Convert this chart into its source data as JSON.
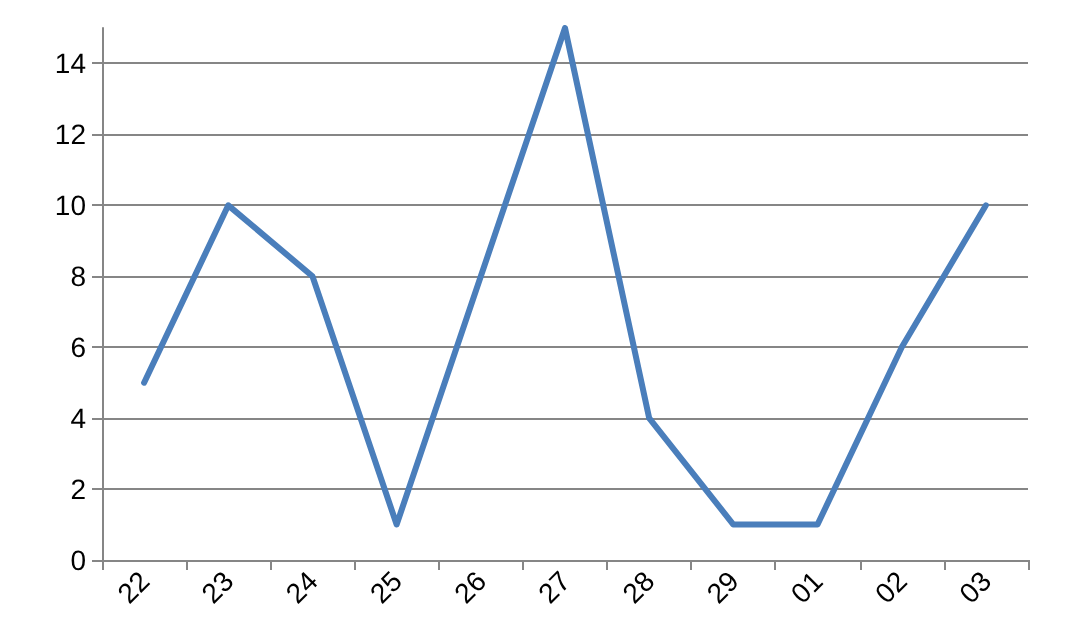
{
  "chart_data": {
    "type": "line",
    "categories": [
      "22",
      "23",
      "24",
      "25",
      "26",
      "27",
      "28",
      "29",
      "01",
      "02",
      "03"
    ],
    "series": [
      {
        "color": "#4a7ebb",
        "values": [
          5,
          10,
          8,
          1,
          8,
          15,
          4,
          1,
          1,
          6,
          10
        ]
      }
    ],
    "ylim": [
      0,
      15
    ],
    "yticks": [
      0,
      2,
      4,
      6,
      8,
      10,
      12,
      14
    ],
    "grid": "y",
    "marker": "none",
    "line_style": "solid"
  }
}
